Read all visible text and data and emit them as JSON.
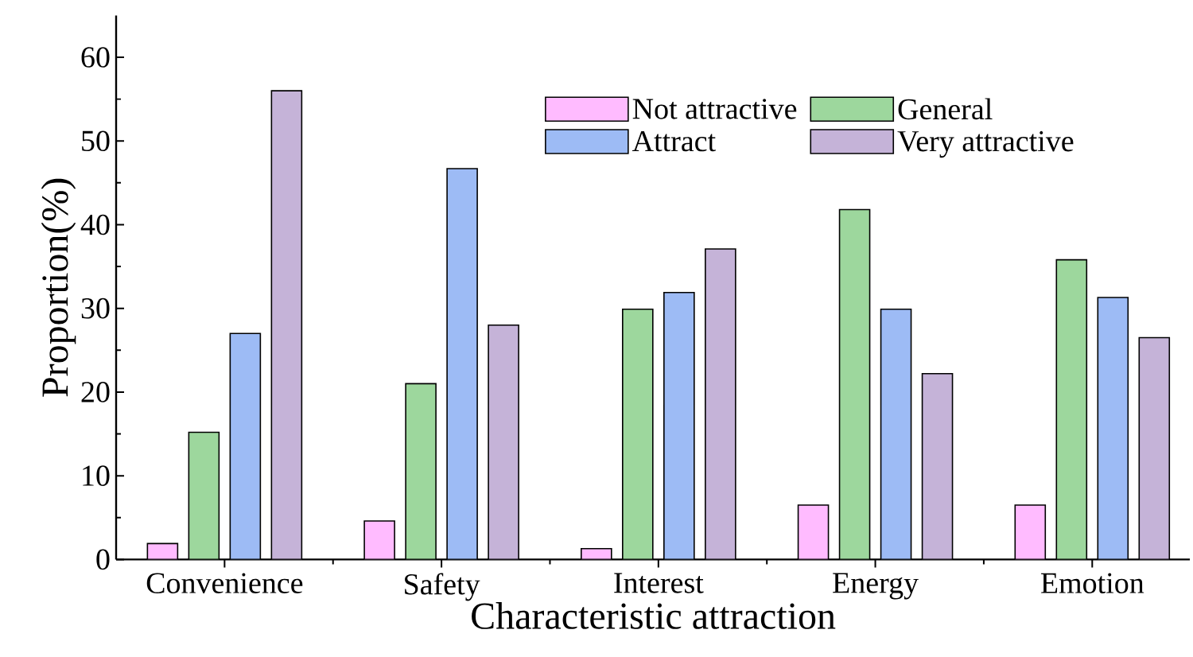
{
  "chart_data": {
    "type": "bar",
    "xlabel": "Characteristic attraction",
    "ylabel": "Proportion(%)",
    "categories": [
      "Convenience",
      "Safety",
      "Interest",
      "Energy",
      "Emotion"
    ],
    "series": [
      {
        "name": "Not attractive",
        "color": "#ffbbff",
        "values": [
          1.9,
          4.6,
          1.3,
          6.5,
          6.5
        ]
      },
      {
        "name": "General",
        "color": "#9dd79d",
        "values": [
          15.2,
          21.0,
          29.9,
          41.8,
          35.8
        ]
      },
      {
        "name": "Attract",
        "color": "#9dbbf5",
        "values": [
          27.0,
          46.7,
          31.9,
          29.9,
          31.3
        ]
      },
      {
        "name": "Very attractive",
        "color": "#c5b3d8",
        "values": [
          56.0,
          28.0,
          37.1,
          22.2,
          26.5
        ]
      }
    ],
    "ylim": [
      0,
      65
    ],
    "yticks": [
      0,
      10,
      20,
      30,
      40,
      50,
      60
    ],
    "grid": false,
    "legend": "top right"
  }
}
